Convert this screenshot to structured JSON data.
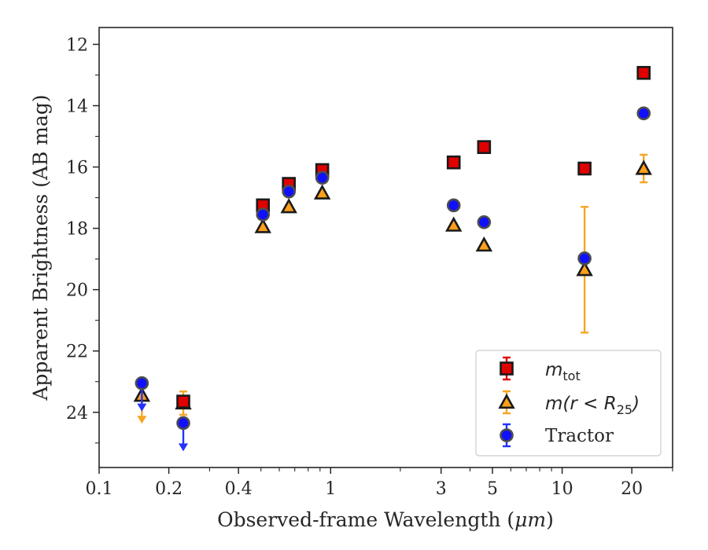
{
  "chart_data": {
    "type": "scatter",
    "title": "",
    "xlabel": "Observed-frame Wavelength (",
    "xlabel_unit": "μm",
    "xlabel_close": ")",
    "ylabel": "Apparent Brightness (AB mag)",
    "xscale": "log",
    "xlim": [
      0.1,
      30
    ],
    "ylim": [
      25.8,
      11.45
    ],
    "y_inverted": true,
    "x_ticks": [
      0.1,
      0.2,
      0.4,
      1,
      3,
      5,
      10,
      20
    ],
    "x_tick_labels": [
      "0.1",
      "0.2",
      "0.4",
      "1",
      "3",
      "5",
      "10",
      "20"
    ],
    "y_ticks": [
      12,
      14,
      16,
      18,
      20,
      22,
      24
    ],
    "y_tick_labels": [
      "12",
      "14",
      "16",
      "18",
      "20",
      "22",
      "24"
    ],
    "grid": false,
    "legend_position": "bottom-right",
    "series": [
      {
        "key": "mtot",
        "legend_main": "m",
        "legend_sub": "tot",
        "marker": "square",
        "color": "#e00000",
        "error_color": "#e00000",
        "points": [
          {
            "x": 0.231,
            "y": 23.65,
            "err": 0.1
          },
          {
            "x": 0.51,
            "y": 17.25,
            "err": 0.08
          },
          {
            "x": 0.66,
            "y": 16.55,
            "err": 0.08
          },
          {
            "x": 0.92,
            "y": 16.1,
            "err": 0.08
          },
          {
            "x": 3.4,
            "y": 15.85,
            "err": 0.05
          },
          {
            "x": 4.6,
            "y": 15.35,
            "err": 0.05
          },
          {
            "x": 12.5,
            "y": 16.05,
            "err": 0.05
          },
          {
            "x": 22.5,
            "y": 12.93,
            "err": 0.05
          }
        ]
      },
      {
        "key": "mr25",
        "legend_main": "m",
        "legend_paren": "(r < R",
        "legend_sub": "25",
        "legend_close": ")",
        "marker": "triangle",
        "color": "#ff9f1a",
        "error_color": "#f5a623",
        "points": [
          {
            "x": 0.153,
            "y": 23.45,
            "upper_limit": true
          },
          {
            "x": 0.231,
            "y": 23.7,
            "err": 0.38
          },
          {
            "x": 0.51,
            "y": 17.95,
            "err": 0.05
          },
          {
            "x": 0.66,
            "y": 17.3,
            "err": 0.05
          },
          {
            "x": 0.92,
            "y": 16.85,
            "err": 0.05
          },
          {
            "x": 3.4,
            "y": 17.9,
            "err": 0.05
          },
          {
            "x": 4.6,
            "y": 18.55,
            "err": 0.05
          },
          {
            "x": 12.5,
            "y": 19.35,
            "err": 2.05
          },
          {
            "x": 22.5,
            "y": 16.05,
            "err": 0.45
          }
        ]
      },
      {
        "key": "tractor",
        "legend_main": "Tractor",
        "marker": "circle",
        "color": "#1010ff",
        "error_color": "#2233ff",
        "points": [
          {
            "x": 0.153,
            "y": 23.05,
            "upper_limit": true
          },
          {
            "x": 0.231,
            "y": 24.35,
            "upper_limit": true
          },
          {
            "x": 0.51,
            "y": 17.55,
            "err": 0.05
          },
          {
            "x": 0.66,
            "y": 16.8,
            "err": 0.05
          },
          {
            "x": 0.92,
            "y": 16.35,
            "err": 0.05
          },
          {
            "x": 3.4,
            "y": 17.25,
            "err": 0.05
          },
          {
            "x": 4.6,
            "y": 17.8,
            "err": 0.05
          },
          {
            "x": 12.5,
            "y": 18.98,
            "err": 0.05
          },
          {
            "x": 22.5,
            "y": 14.25,
            "err": 0.05
          }
        ]
      }
    ]
  }
}
